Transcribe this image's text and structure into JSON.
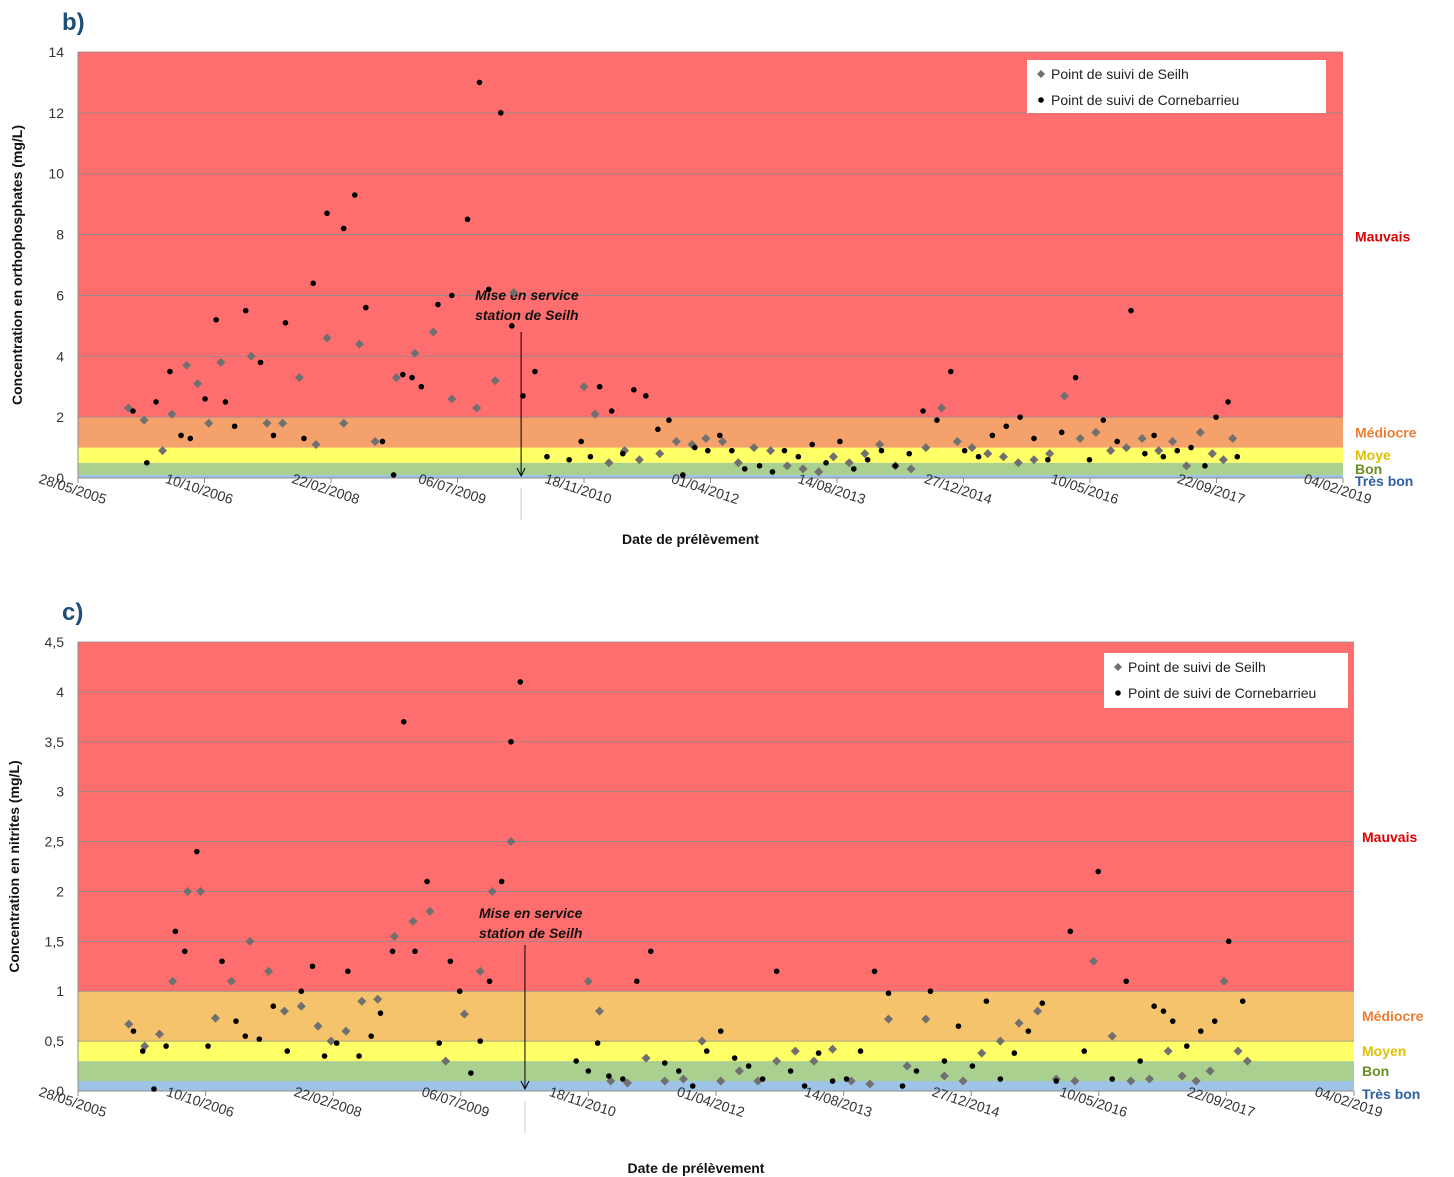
{
  "chart_data": [
    {
      "panel_label": "b)",
      "type": "scatter",
      "xlabel": "Date de prélèvement",
      "ylabel": "Concentration en orthophosphates (mg/L)",
      "ylim": [
        0,
        14
      ],
      "y_ticks": [
        "0",
        "2",
        "4",
        "6",
        "8",
        "10",
        "12",
        "14"
      ],
      "x_ticks": [
        "28/05/2005",
        "10/10/2006",
        "22/02/2008",
        "06/07/2009",
        "18/11/2010",
        "01/04/2012",
        "14/08/2013",
        "27/12/2014",
        "10/05/2016",
        "22/09/2017",
        "04/02/2019"
      ],
      "grid": true,
      "legend": "top-right",
      "annotation": {
        "line1": "Mise en service",
        "line2": "station de Seilh",
        "x": 2010.2
      },
      "zones": [
        {
          "label": "Très bon",
          "from": 0,
          "to": 0.1,
          "color": "#9dc3e6",
          "text_color": "#2e5fa3"
        },
        {
          "label": "Bon",
          "from": 0.1,
          "to": 0.5,
          "color": "#a9d08e",
          "text_color": "#6b8e23"
        },
        {
          "label": "Moye",
          "from": 0.5,
          "to": 1,
          "color": "#ffff66",
          "text_color": "#e0c000"
        },
        {
          "label": "Médiocre",
          "from": 1,
          "to": 2,
          "color": "#f4a16b",
          "text_color": "#ed7d31"
        },
        {
          "label": "Mauvais",
          "from": 2,
          "to": 14,
          "color": "#ff6e6e",
          "text_color": "#e00000"
        }
      ],
      "series": [
        {
          "name": "Point de suivi de Seilh",
          "marker": "diamond",
          "color": "#707070",
          "x": [
            2005.95,
            2006.12,
            2006.32,
            2006.42,
            2006.58,
            2006.7,
            2006.82,
            2006.95,
            2007.28,
            2007.45,
            2007.62,
            2007.8,
            2007.98,
            2008.1,
            2008.28,
            2008.45,
            2008.62,
            2008.85,
            2009.05,
            2009.25,
            2009.45,
            2009.72,
            2009.92,
            2010.12,
            2010.88,
            2011.0,
            2011.15,
            2011.32,
            2011.48,
            2011.7,
            2011.88,
            2012.05,
            2012.2,
            2012.38,
            2012.55,
            2012.72,
            2012.9,
            2013.08,
            2013.25,
            2013.42,
            2013.58,
            2013.75,
            2013.92,
            2014.08,
            2014.25,
            2014.42,
            2014.58,
            2014.75,
            2014.92,
            2015.08,
            2015.25,
            2015.42,
            2015.58,
            2015.75,
            2015.92,
            2016.08,
            2016.25,
            2016.42,
            2016.58,
            2016.75,
            2016.92,
            2017.1,
            2017.25,
            2017.4,
            2017.55,
            2017.68,
            2017.8,
            2017.9
          ],
          "y": [
            2.3,
            1.9,
            0.9,
            2.1,
            3.7,
            3.1,
            1.8,
            3.8,
            4.0,
            1.8,
            1.8,
            3.3,
            1.1,
            4.6,
            1.8,
            4.4,
            1.2,
            3.3,
            4.1,
            4.8,
            2.6,
            2.3,
            3.2,
            6.1,
            3.0,
            2.1,
            0.5,
            0.9,
            0.6,
            0.8,
            1.2,
            1.1,
            1.3,
            1.2,
            0.5,
            1.0,
            0.9,
            0.4,
            0.3,
            0.2,
            0.7,
            0.5,
            0.8,
            1.1,
            0.4,
            0.3,
            1.0,
            2.3,
            1.2,
            1.0,
            0.8,
            0.7,
            0.5,
            0.6,
            0.8,
            2.7,
            1.3,
            1.5,
            0.9,
            1.0,
            1.3,
            0.9,
            1.2,
            0.4,
            1.5,
            0.8,
            0.6,
            1.3
          ]
        },
        {
          "name": "Point de suivi de Cornebarrieu",
          "marker": "circle",
          "color": "#000000",
          "x": [
            2006.0,
            2006.15,
            2006.25,
            2006.4,
            2006.52,
            2006.62,
            2006.78,
            2006.9,
            2007.0,
            2007.1,
            2007.22,
            2007.38,
            2007.52,
            2007.65,
            2007.85,
            2007.95,
            2008.1,
            2008.28,
            2008.4,
            2008.52,
            2008.7,
            2008.82,
            2008.92,
            2009.02,
            2009.12,
            2009.3,
            2009.45,
            2009.62,
            2009.75,
            2009.85,
            2009.98,
            2010.1,
            2010.22,
            2010.35,
            2010.48,
            2010.72,
            2010.85,
            2010.95,
            2011.05,
            2011.18,
            2011.3,
            2011.42,
            2011.55,
            2011.68,
            2011.8,
            2011.95,
            2012.08,
            2012.22,
            2012.35,
            2012.48,
            2012.62,
            2012.78,
            2012.92,
            2013.05,
            2013.2,
            2013.35,
            2013.5,
            2013.65,
            2013.8,
            2013.95,
            2014.1,
            2014.25,
            2014.4,
            2014.55,
            2014.7,
            2014.85,
            2015.0,
            2015.15,
            2015.3,
            2015.45,
            2015.6,
            2015.75,
            2015.9,
            2016.05,
            2016.2,
            2016.35,
            2016.5,
            2016.65,
            2016.8,
            2016.95,
            2017.05,
            2017.15,
            2017.3,
            2017.45,
            2017.6,
            2017.72,
            2017.85,
            2017.95
          ],
          "y": [
            2.2,
            0.5,
            2.5,
            3.5,
            1.4,
            1.3,
            2.6,
            5.2,
            2.5,
            1.7,
            5.5,
            3.8,
            1.4,
            5.1,
            1.3,
            6.4,
            8.7,
            8.2,
            9.3,
            5.6,
            1.2,
            0.1,
            3.4,
            3.3,
            3.0,
            5.7,
            6.0,
            8.5,
            13.0,
            6.2,
            12.0,
            5.0,
            2.7,
            3.5,
            0.7,
            0.6,
            1.2,
            0.7,
            3.0,
            2.2,
            0.8,
            2.9,
            2.7,
            1.6,
            1.9,
            0.1,
            1.0,
            0.9,
            1.4,
            0.9,
            0.3,
            0.4,
            0.2,
            0.9,
            0.7,
            1.1,
            0.5,
            1.2,
            0.3,
            0.6,
            0.9,
            0.4,
            0.8,
            2.2,
            1.9,
            3.5,
            0.9,
            0.7,
            1.4,
            1.7,
            2.0,
            1.3,
            0.6,
            1.5,
            3.3,
            0.6,
            1.9,
            1.2,
            5.5,
            0.8,
            1.4,
            0.7,
            0.9,
            1.0,
            0.4,
            2.0,
            2.5,
            0.7
          ]
        }
      ]
    },
    {
      "panel_label": "c)",
      "type": "scatter",
      "xlabel": "Date de prélèvement",
      "ylabel": "Concentration en nitrites (mg/L)",
      "ylim": [
        0,
        4.5
      ],
      "y_ticks": [
        "0",
        "0,5",
        "1",
        "1,5",
        "2",
        "2,5",
        "3",
        "3,5",
        "4",
        "4,5"
      ],
      "x_ticks": [
        "28/05/2005",
        "10/10/2006",
        "22/02/2008",
        "06/07/2009",
        "18/11/2010",
        "01/04/2012",
        "14/08/2013",
        "27/12/2014",
        "10/05/2016",
        "22/09/2017",
        "04/02/2019"
      ],
      "grid": true,
      "legend": "top-right",
      "annotation": {
        "line1": "Mise en service",
        "line2": "station de Seilh",
        "x": 2010.2
      },
      "zones": [
        {
          "label": "Très bon",
          "from": 0,
          "to": 0.1,
          "color": "#9dc3e6",
          "text_color": "#2e5fa3"
        },
        {
          "label": "Bon",
          "from": 0.1,
          "to": 0.3,
          "color": "#a9d08e",
          "text_color": "#6b8e23"
        },
        {
          "label": "Moyen",
          "from": 0.3,
          "to": 0.5,
          "color": "#ffff66",
          "text_color": "#e0c000"
        },
        {
          "label": "Médiocre",
          "from": 0.5,
          "to": 1,
          "color": "#f4c36b",
          "text_color": "#ed7d31"
        },
        {
          "label": "Mauvais",
          "from": 1,
          "to": 4.5,
          "color": "#ff6e6e",
          "text_color": "#e00000"
        }
      ],
      "series": [
        {
          "name": "Point de suivi de Seilh",
          "marker": "diamond",
          "color": "#707070",
          "x": [
            2005.95,
            2006.12,
            2006.28,
            2006.42,
            2006.58,
            2006.72,
            2006.88,
            2007.05,
            2007.25,
            2007.45,
            2007.62,
            2007.8,
            2007.98,
            2008.12,
            2008.28,
            2008.45,
            2008.62,
            2008.8,
            2009.0,
            2009.18,
            2009.35,
            2009.55,
            2009.72,
            2009.85,
            2010.05,
            2010.88,
            2011.0,
            2011.12,
            2011.3,
            2011.5,
            2011.7,
            2011.9,
            2012.1,
            2012.3,
            2012.5,
            2012.7,
            2012.9,
            2013.1,
            2013.3,
            2013.5,
            2013.7,
            2013.9,
            2014.1,
            2014.3,
            2014.5,
            2014.7,
            2014.9,
            2015.1,
            2015.3,
            2015.5,
            2015.7,
            2015.9,
            2016.1,
            2016.3,
            2016.5,
            2016.7,
            2016.9,
            2017.1,
            2017.25,
            2017.4,
            2017.55,
            2017.7,
            2017.85,
            2017.95
          ],
          "x_note": "",
          "y": [
            0.67,
            0.45,
            0.57,
            1.1,
            2.0,
            2.0,
            0.73,
            1.1,
            1.5,
            1.2,
            0.8,
            0.85,
            0.65,
            0.5,
            0.6,
            0.9,
            0.92,
            1.55,
            1.7,
            1.8,
            0.3,
            0.77,
            1.2,
            2.0,
            2.5,
            1.1,
            0.8,
            0.1,
            0.08,
            0.33,
            0.1,
            0.12,
            0.5,
            0.1,
            0.2,
            0.1,
            0.3,
            0.4,
            0.3,
            0.42,
            0.1,
            0.07,
            0.72,
            0.25,
            0.72,
            0.15,
            0.1,
            0.38,
            0.5,
            0.68,
            0.8,
            0.12,
            0.1,
            1.3,
            0.55,
            0.1,
            0.12,
            0.4,
            0.15,
            0.1,
            0.2,
            1.1,
            0.4,
            0.3
          ]
        },
        {
          "name": "Point de suivi de Cornebarrieu",
          "marker": "circle",
          "color": "#000000",
          "x": [
            2006.0,
            2006.1,
            2006.22,
            2006.35,
            2006.45,
            2006.55,
            2006.68,
            2006.8,
            2006.95,
            2007.1,
            2007.2,
            2007.35,
            2007.5,
            2007.65,
            2007.8,
            2007.92,
            2008.05,
            2008.18,
            2008.3,
            2008.42,
            2008.55,
            2008.65,
            2008.78,
            2008.9,
            2009.02,
            2009.15,
            2009.28,
            2009.4,
            2009.5,
            2009.62,
            2009.72,
            2009.82,
            2009.95,
            2010.05,
            2010.15,
            2010.75,
            2010.88,
            2010.98,
            2011.1,
            2011.25,
            2011.4,
            2011.55,
            2011.7,
            2011.85,
            2012.0,
            2012.15,
            2012.3,
            2012.45,
            2012.6,
            2012.75,
            2012.9,
            2013.05,
            2013.2,
            2013.35,
            2013.5,
            2013.65,
            2013.8,
            2013.95,
            2014.1,
            2014.25,
            2014.4,
            2014.55,
            2014.7,
            2014.85,
            2015.0,
            2015.15,
            2015.3,
            2015.45,
            2015.6,
            2015.75,
            2015.9,
            2016.05,
            2016.2,
            2016.35,
            2016.5,
            2016.65,
            2016.8,
            2016.95,
            2017.05,
            2017.15,
            2017.3,
            2017.45,
            2017.6,
            2017.75,
            2017.9
          ],
          "y": [
            0.6,
            0.4,
            0.02,
            0.45,
            1.6,
            1.4,
            2.4,
            0.45,
            1.3,
            0.7,
            0.55,
            0.52,
            0.85,
            0.4,
            1.0,
            1.25,
            0.35,
            0.48,
            1.2,
            0.35,
            0.55,
            0.78,
            1.4,
            3.7,
            1.4,
            2.1,
            0.48,
            1.3,
            1.0,
            0.18,
            0.5,
            1.1,
            2.1,
            3.5,
            4.1,
            0.3,
            0.2,
            0.48,
            0.15,
            0.12,
            1.1,
            1.4,
            0.28,
            0.2,
            0.05,
            0.4,
            0.6,
            0.33,
            0.25,
            0.12,
            1.2,
            0.2,
            0.05,
            0.38,
            0.1,
            0.12,
            0.4,
            1.2,
            0.98,
            0.05,
            0.2,
            1.0,
            0.3,
            0.65,
            0.25,
            0.9,
            0.12,
            0.38,
            0.6,
            0.88,
            0.1,
            1.6,
            0.4,
            2.2,
            0.12,
            1.1,
            0.3,
            0.85,
            0.8,
            0.7,
            0.45,
            0.6,
            0.7,
            1.5,
            0.9
          ]
        }
      ]
    }
  ]
}
